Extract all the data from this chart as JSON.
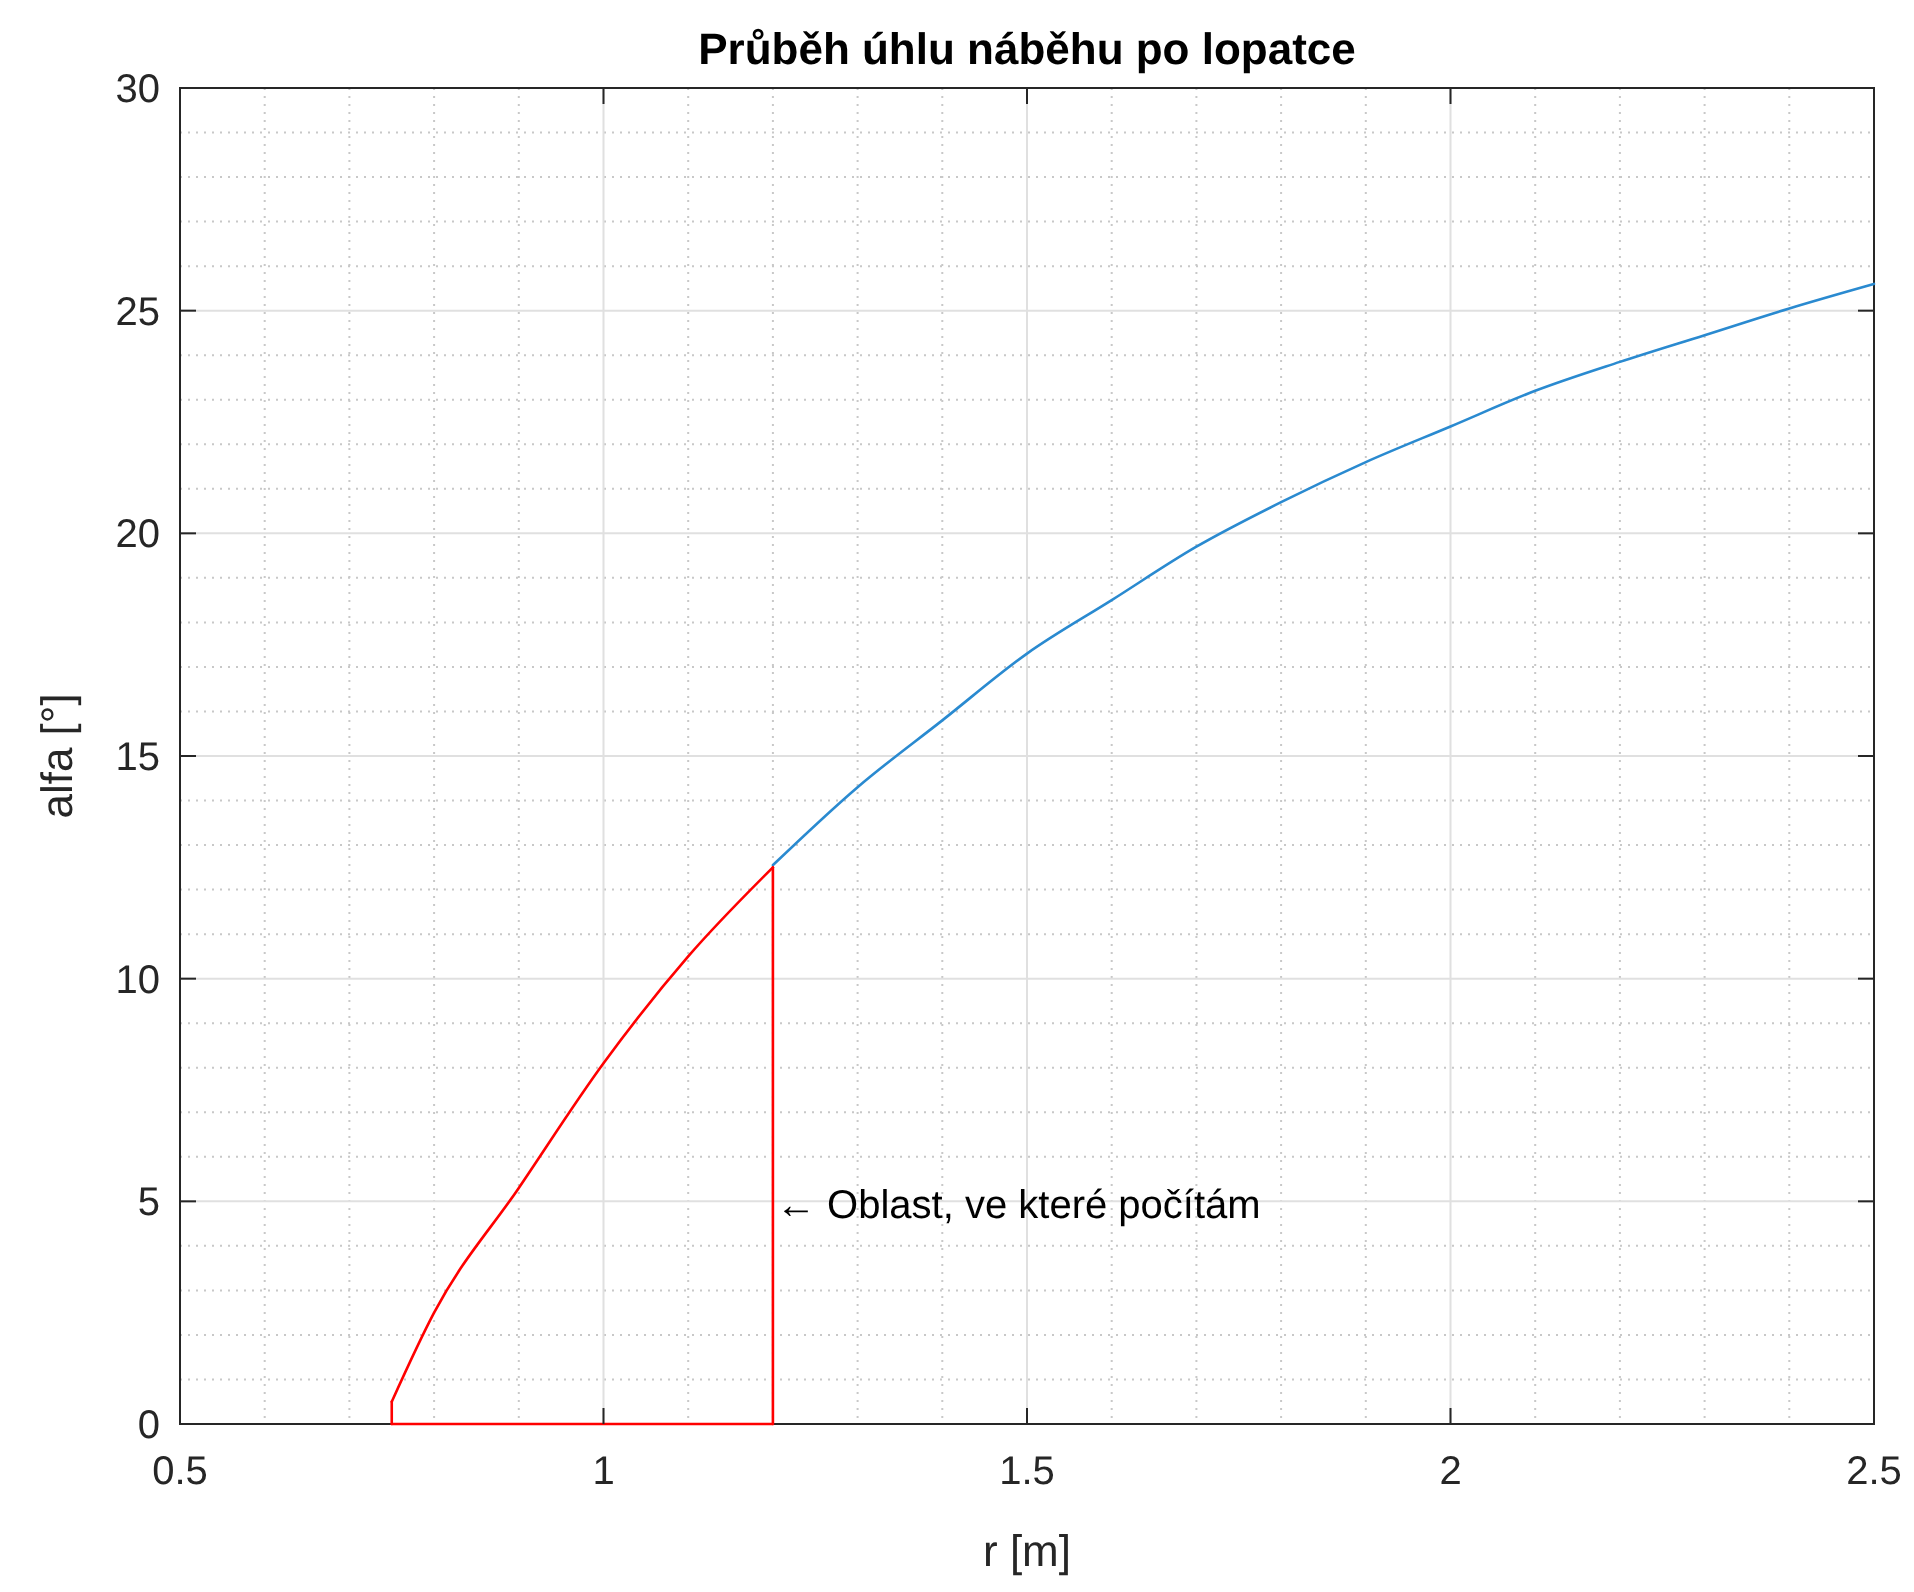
{
  "chart_data": {
    "type": "line",
    "title": "Průběh úhlu náběhu po lopatce",
    "xlabel": "r [m]",
    "ylabel": "alfa [°]",
    "xlim": [
      0.5,
      2.5
    ],
    "xticks": [
      0.5,
      1,
      1.5,
      2,
      2.5
    ],
    "ylim": [
      0,
      30
    ],
    "yticks": [
      0,
      5,
      10,
      15,
      20,
      25,
      30
    ],
    "grid": true,
    "marker": "none",
    "line_style": "solid",
    "series": [
      {
        "color": "#2a8ad0",
        "x": [
          1.2,
          1.3,
          1.4,
          1.5,
          1.6,
          1.7,
          1.8,
          1.9,
          2.0,
          2.1,
          2.2,
          2.3,
          2.4,
          2.5
        ],
        "values": [
          12.55,
          14.3,
          15.8,
          17.3,
          18.5,
          19.7,
          20.7,
          21.6,
          22.4,
          23.2,
          23.85,
          24.45,
          25.05,
          25.6
        ]
      },
      {
        "color": "#ff0000",
        "x": [
          0.75,
          0.8,
          0.9,
          1.0,
          1.1,
          1.2
        ],
        "values": [
          0.5,
          2.5,
          5.3,
          8.1,
          10.5,
          12.5
        ]
      },
      {
        "color": "#ff0000",
        "x": [
          1.2,
          1.2
        ],
        "values": [
          12.5,
          0
        ]
      },
      {
        "color": "#ff0000",
        "x": [
          0.75,
          1.2
        ],
        "values": [
          0,
          0
        ]
      },
      {
        "color": "#ff0000",
        "x": [
          0.75,
          0.75
        ],
        "values": [
          0,
          0.5
        ]
      }
    ],
    "annotations": [
      "← Oblast, ve které počítám"
    ]
  }
}
